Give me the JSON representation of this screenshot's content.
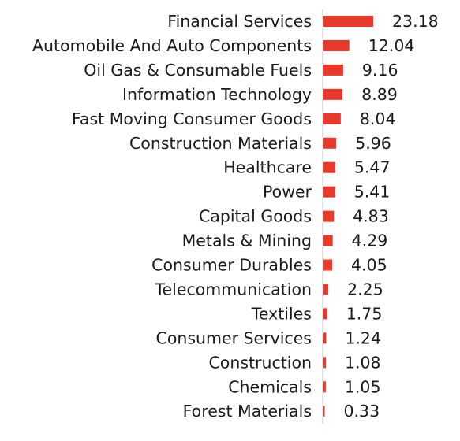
{
  "chart_data": {
    "type": "bar",
    "orientation": "horizontal",
    "categories": [
      "Financial Services",
      "Automobile And Auto Components",
      "Oil Gas & Consumable Fuels",
      "Information Technology",
      "Fast Moving Consumer Goods",
      "Construction Materials",
      "Healthcare",
      "Power",
      "Capital Goods",
      "Metals & Mining",
      "Consumer Durables",
      "Telecommunication",
      "Textiles",
      "Consumer Services",
      "Construction",
      "Chemicals",
      "Forest Materials"
    ],
    "values": [
      23.18,
      12.04,
      9.16,
      8.89,
      8.04,
      5.96,
      5.47,
      5.41,
      4.83,
      4.29,
      4.05,
      2.25,
      1.75,
      1.24,
      1.08,
      1.05,
      0.33
    ],
    "value_labels": [
      "23.18",
      "12.04",
      "9.16",
      "8.89",
      "8.04",
      "5.96",
      "5.47",
      "5.41",
      "4.83",
      "4.29",
      "4.05",
      "2.25",
      "1.75",
      "1.24",
      "1.08",
      "1.05",
      "0.33"
    ],
    "title": "",
    "xlabel": "",
    "ylabel": "",
    "xlim": [
      0,
      23.18
    ],
    "grid": false,
    "legend": "none",
    "bar_color": "#e8392b"
  }
}
